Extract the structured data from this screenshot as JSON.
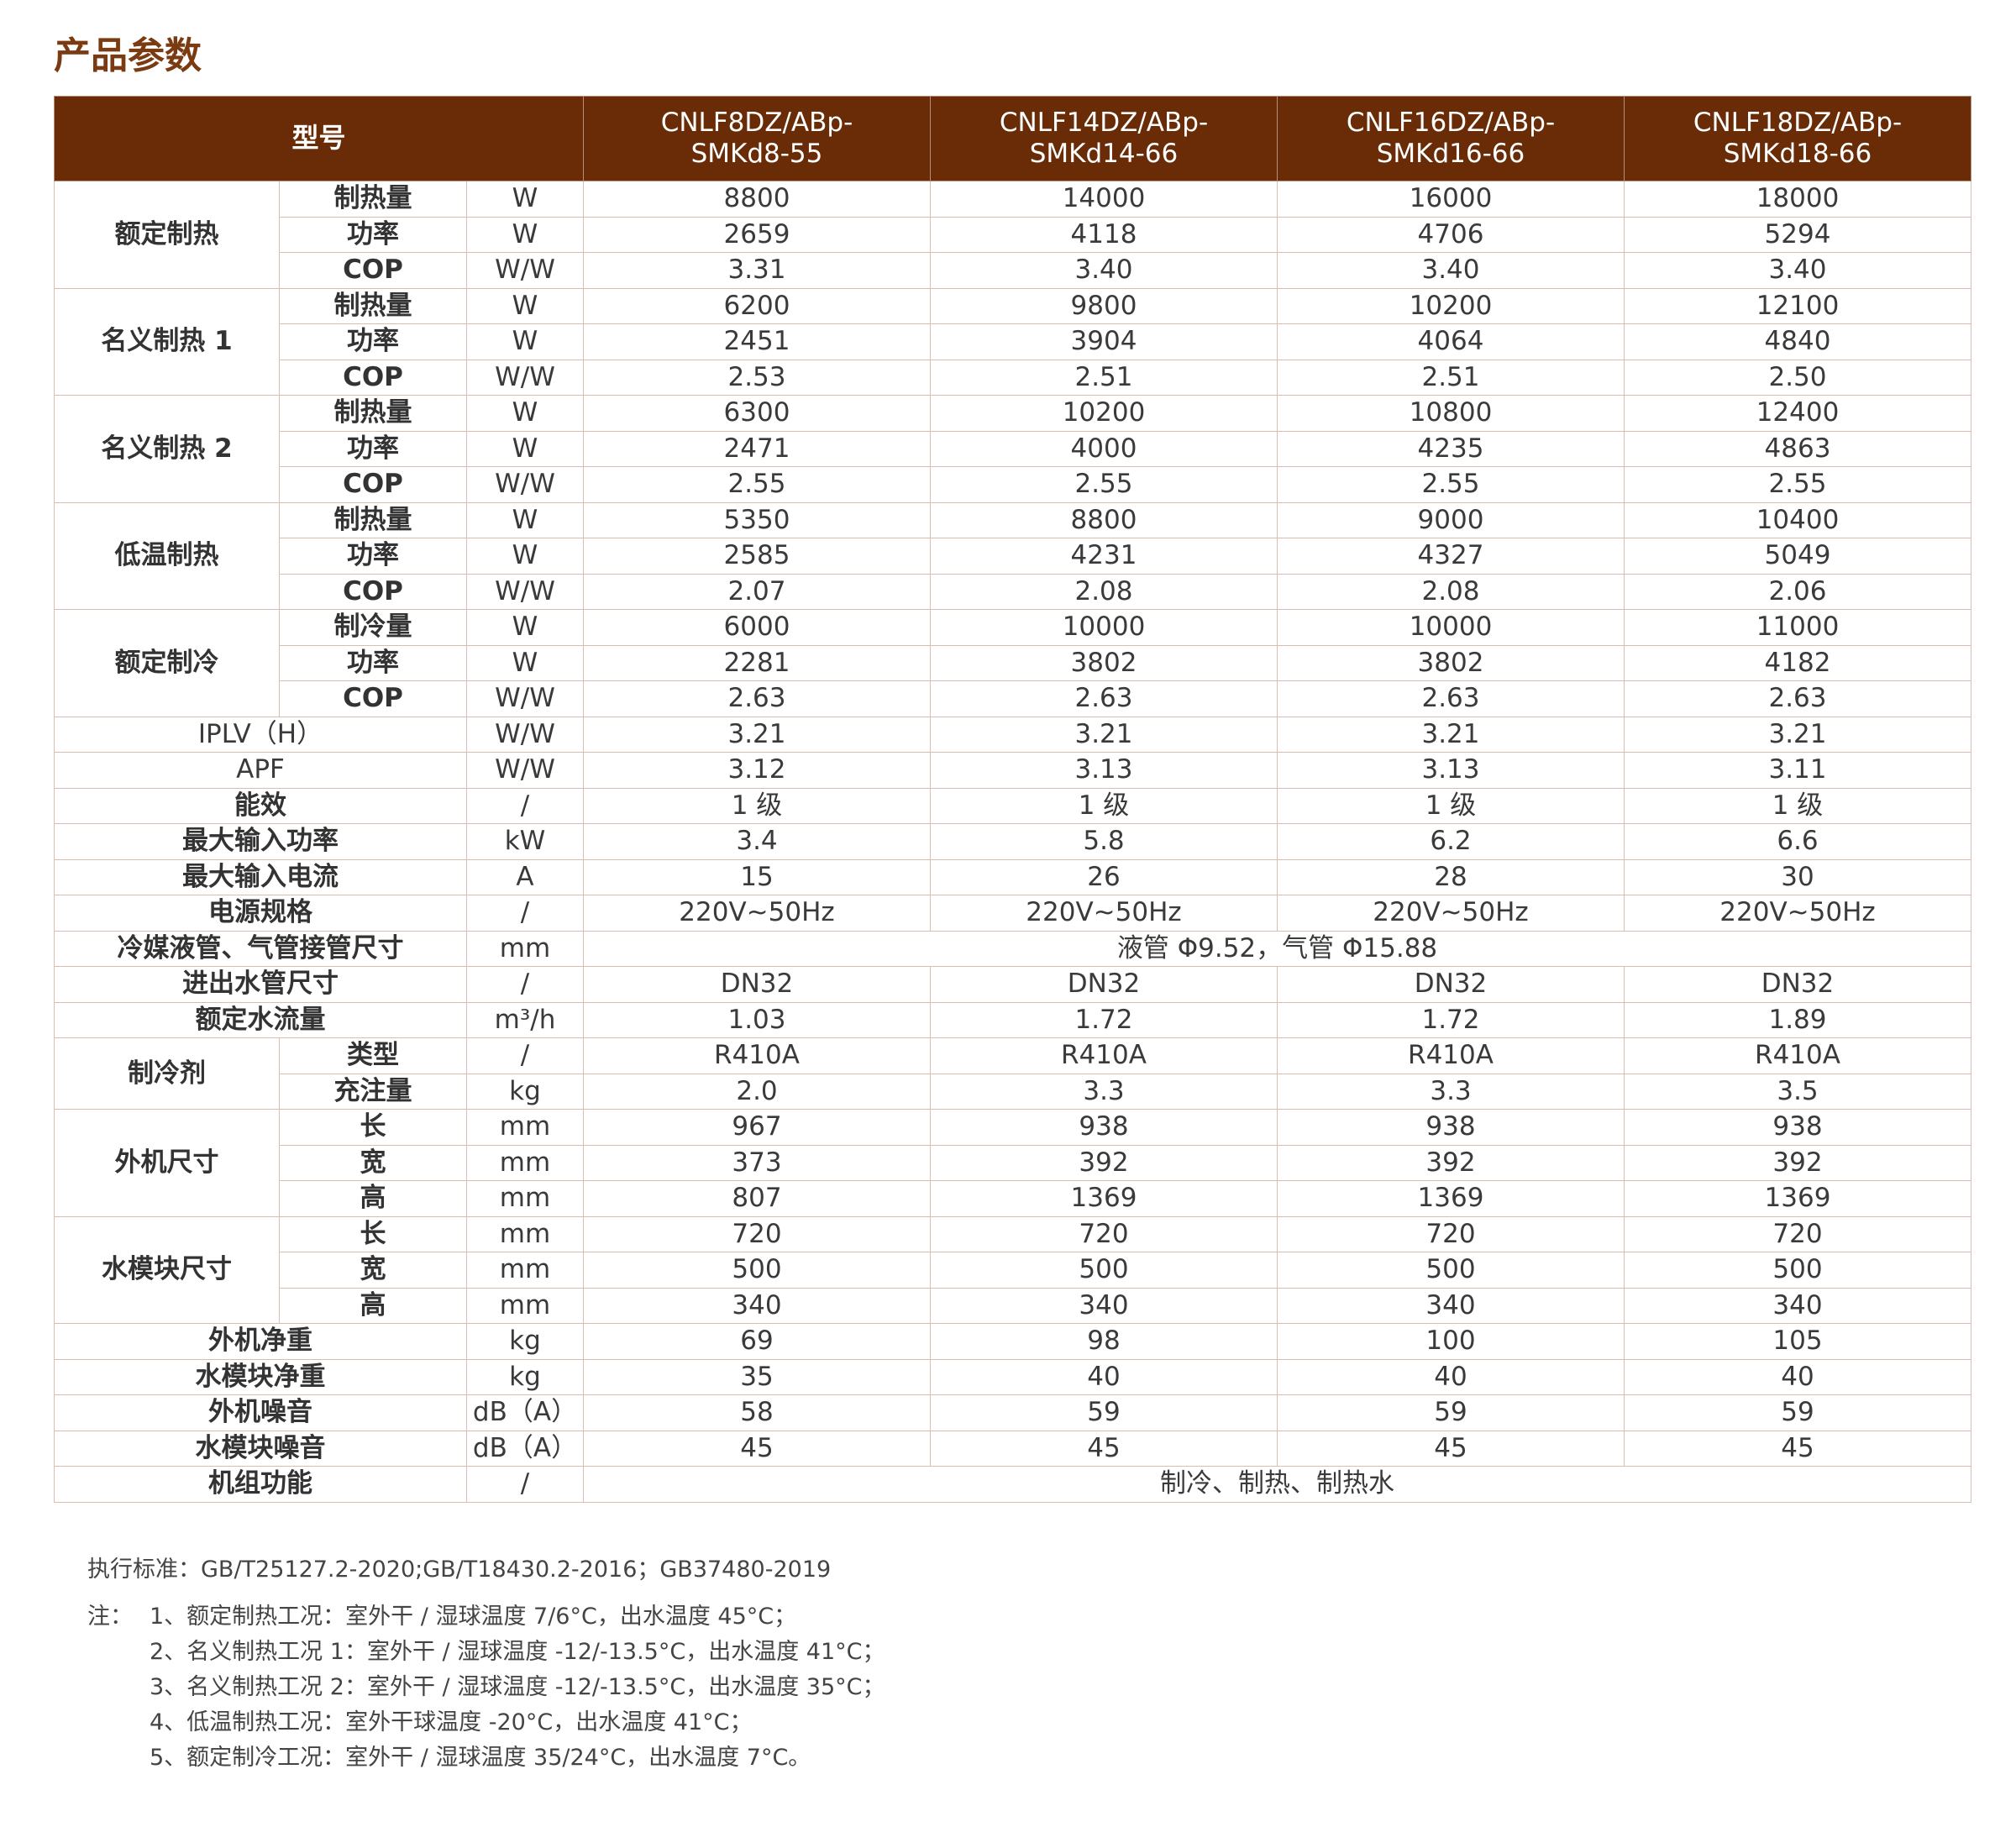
{
  "title": "产品参数",
  "header": {
    "model_label": "型号",
    "models": [
      {
        "line1": "CNLF8DZ/ABp-",
        "line2": "SMKd8-55"
      },
      {
        "line1": "CNLF14DZ/ABp-",
        "line2": "SMKd14-66"
      },
      {
        "line1": "CNLF16DZ/ABp-",
        "line2": "SMKd16-66"
      },
      {
        "line1": "CNLF18DZ/ABp-",
        "line2": "SMKd18-66"
      }
    ]
  },
  "groups": [
    {
      "label": "额定制热",
      "rows": [
        {
          "sub": "制热量",
          "unit": "W",
          "values": [
            "8800",
            "14000",
            "16000",
            "18000"
          ]
        },
        {
          "sub": "功率",
          "unit": "W",
          "values": [
            "2659",
            "4118",
            "4706",
            "5294"
          ]
        },
        {
          "sub": "COP",
          "unit": "W/W",
          "values": [
            "3.31",
            "3.40",
            "3.40",
            "3.40"
          ]
        }
      ]
    },
    {
      "label": "名义制热 1",
      "rows": [
        {
          "sub": "制热量",
          "unit": "W",
          "values": [
            "6200",
            "9800",
            "10200",
            "12100"
          ]
        },
        {
          "sub": "功率",
          "unit": "W",
          "values": [
            "2451",
            "3904",
            "4064",
            "4840"
          ]
        },
        {
          "sub": "COP",
          "unit": "W/W",
          "values": [
            "2.53",
            "2.51",
            "2.51",
            "2.50"
          ]
        }
      ]
    },
    {
      "label": "名义制热 2",
      "rows": [
        {
          "sub": "制热量",
          "unit": "W",
          "values": [
            "6300",
            "10200",
            "10800",
            "12400"
          ]
        },
        {
          "sub": "功率",
          "unit": "W",
          "values": [
            "2471",
            "4000",
            "4235",
            "4863"
          ]
        },
        {
          "sub": "COP",
          "unit": "W/W",
          "values": [
            "2.55",
            "2.55",
            "2.55",
            "2.55"
          ]
        }
      ]
    },
    {
      "label": "低温制热",
      "rows": [
        {
          "sub": "制热量",
          "unit": "W",
          "values": [
            "5350",
            "8800",
            "9000",
            "10400"
          ]
        },
        {
          "sub": "功率",
          "unit": "W",
          "values": [
            "2585",
            "4231",
            "4327",
            "5049"
          ]
        },
        {
          "sub": "COP",
          "unit": "W/W",
          "values": [
            "2.07",
            "2.08",
            "2.08",
            "2.06"
          ]
        }
      ]
    },
    {
      "label": "额定制冷",
      "rows": [
        {
          "sub": "制冷量",
          "unit": "W",
          "values": [
            "6000",
            "10000",
            "10000",
            "11000"
          ]
        },
        {
          "sub": "功率",
          "unit": "W",
          "values": [
            "2281",
            "3802",
            "3802",
            "4182"
          ]
        },
        {
          "sub": "COP",
          "unit": "W/W",
          "values": [
            "2.63",
            "2.63",
            "2.63",
            "2.63"
          ]
        }
      ]
    }
  ],
  "singles_a": [
    {
      "label": "IPLV（H）",
      "bold": false,
      "unit": "W/W",
      "values": [
        "3.21",
        "3.21",
        "3.21",
        "3.21"
      ]
    },
    {
      "label": "APF",
      "bold": false,
      "unit": "W/W",
      "values": [
        "3.12",
        "3.13",
        "3.13",
        "3.11"
      ]
    },
    {
      "label": "能效",
      "bold": true,
      "unit": "/",
      "values": [
        "1 级",
        "1 级",
        "1 级",
        "1 级"
      ]
    },
    {
      "label": "最大输入功率",
      "bold": true,
      "unit": "kW",
      "values": [
        "3.4",
        "5.8",
        "6.2",
        "6.6"
      ]
    },
    {
      "label": "最大输入电流",
      "bold": true,
      "unit": "A",
      "values": [
        "15",
        "26",
        "28",
        "30"
      ]
    },
    {
      "label": "电源规格",
      "bold": true,
      "unit": "/",
      "values": [
        "220V~50Hz",
        "220V~50Hz",
        "220V~50Hz",
        "220V~50Hz"
      ]
    }
  ],
  "pipe_row": {
    "label": "冷媒液管、气管接管尺寸",
    "unit": "mm",
    "value": "液管 Φ9.52，气管 Φ15.88"
  },
  "singles_b": [
    {
      "label": "进出水管尺寸",
      "bold": true,
      "unit": "/",
      "values": [
        "DN32",
        "DN32",
        "DN32",
        "DN32"
      ]
    },
    {
      "label": "额定水流量",
      "bold": true,
      "unit": "m³/h",
      "values": [
        "1.03",
        "1.72",
        "1.72",
        "1.89"
      ]
    }
  ],
  "groups_b": [
    {
      "label": "制冷剂",
      "rows": [
        {
          "sub": "类型",
          "unit": "/",
          "values": [
            "R410A",
            "R410A",
            "R410A",
            "R410A"
          ]
        },
        {
          "sub": "充注量",
          "unit": "kg",
          "values": [
            "2.0",
            "3.3",
            "3.3",
            "3.5"
          ]
        }
      ]
    },
    {
      "label": "外机尺寸",
      "rows": [
        {
          "sub": "长",
          "unit": "mm",
          "values": [
            "967",
            "938",
            "938",
            "938"
          ]
        },
        {
          "sub": "宽",
          "unit": "mm",
          "values": [
            "373",
            "392",
            "392",
            "392"
          ]
        },
        {
          "sub": "高",
          "unit": "mm",
          "values": [
            "807",
            "1369",
            "1369",
            "1369"
          ]
        }
      ]
    },
    {
      "label": "水模块尺寸",
      "rows": [
        {
          "sub": "长",
          "unit": "mm",
          "values": [
            "720",
            "720",
            "720",
            "720"
          ]
        },
        {
          "sub": "宽",
          "unit": "mm",
          "values": [
            "500",
            "500",
            "500",
            "500"
          ]
        },
        {
          "sub": "高",
          "unit": "mm",
          "values": [
            "340",
            "340",
            "340",
            "340"
          ]
        }
      ]
    }
  ],
  "singles_c": [
    {
      "label": "外机净重",
      "bold": true,
      "unit": "kg",
      "values": [
        "69",
        "98",
        "100",
        "105"
      ]
    },
    {
      "label": "水模块净重",
      "bold": true,
      "unit": "kg",
      "values": [
        "35",
        "40",
        "40",
        "40"
      ]
    },
    {
      "label": "外机噪音",
      "bold": true,
      "unit": "dB（A）",
      "values": [
        "58",
        "59",
        "59",
        "59"
      ]
    },
    {
      "label": "水模块噪音",
      "bold": true,
      "unit": "dB（A）",
      "values": [
        "45",
        "45",
        "45",
        "45"
      ]
    }
  ],
  "function_row": {
    "label": "机组功能",
    "unit": "/",
    "value": "制冷、制热、制热水"
  },
  "standard": "执行标准：GB/T25127.2-2020;GB/T18430.2-2016；GB37480-2019",
  "notes_label": "注：",
  "notes": [
    "1、额定制热工况：室外干 / 湿球温度 7/6°C，出水温度 45°C；",
    "2、名义制热工况 1：室外干 / 湿球温度 -12/-13.5°C，出水温度 41°C；",
    "3、名义制热工况 2：室外干 / 湿球温度 -12/-13.5°C，出水温度 35°C；",
    "4、低温制热工况：室外干球温度 -20°C，出水温度 41°C；",
    "5、额定制冷工况：室外干 / 湿球温度 35/24°C，出水温度 7°C。"
  ]
}
